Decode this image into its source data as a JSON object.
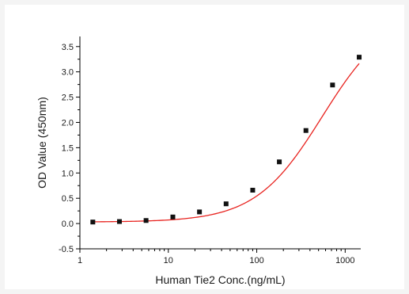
{
  "chart_data": {
    "type": "scatter",
    "title": "",
    "xlabel": "Human Tie2 Conc.(ng/mL)",
    "ylabel": "OD Value (450nm)",
    "xscale": "log",
    "xlim": [
      1,
      1500
    ],
    "ylim": [
      -0.5,
      3.7
    ],
    "xticks": [
      1,
      10,
      100,
      1000
    ],
    "xtick_labels": [
      "1",
      "10",
      "100",
      "1000"
    ],
    "yticks": [
      -0.5,
      0.0,
      0.5,
      1.0,
      1.5,
      2.0,
      2.5,
      3.0,
      3.5
    ],
    "ytick_labels": [
      "-0.5",
      "0.0",
      "0.5",
      "1.0",
      "1.5",
      "2.0",
      "2.5",
      "3.0",
      "3.5"
    ],
    "grid": false,
    "legend": "none",
    "series": [
      {
        "x": [
          1.4,
          2.8,
          5.6,
          11.25,
          22.5,
          45,
          90,
          180,
          360,
          720,
          1440
        ],
        "y": [
          0.03,
          0.04,
          0.06,
          0.13,
          0.23,
          0.39,
          0.66,
          1.22,
          1.84,
          2.74,
          3.29
        ],
        "marker": "square",
        "color": "#111111"
      }
    ],
    "fit_curve": {
      "model": "4PL",
      "bottom": 0.03,
      "top": 4.2,
      "ec50": 550,
      "hill": 1.15,
      "color": "#e8231f"
    }
  }
}
